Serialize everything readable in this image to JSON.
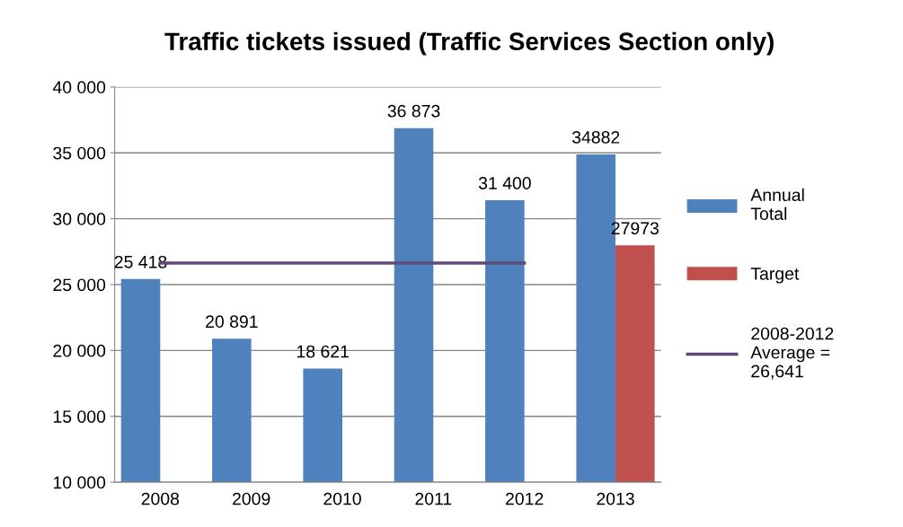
{
  "chart_data": {
    "type": "bar",
    "title": "Traffic tickets issued (Traffic Services Section only)",
    "categories": [
      "2008",
      "2009",
      "2010",
      "2011",
      "2012",
      "2013"
    ],
    "series": [
      {
        "name": "Annual Total",
        "color": "#4f81bd",
        "values": [
          25418,
          20891,
          18621,
          36873,
          31400,
          34882
        ],
        "value_labels": [
          "25 418",
          "20 891",
          "18 621",
          "36 873",
          "31 400",
          "34882"
        ]
      },
      {
        "name": "Target",
        "color": "#c0504d",
        "values": [
          null,
          null,
          null,
          null,
          null,
          27973
        ],
        "value_labels": [
          null,
          null,
          null,
          null,
          null,
          "27973"
        ]
      },
      {
        "name": "2008-2012 Average = 26,641",
        "type": "line",
        "color": "#604a7b",
        "values": [
          26641,
          26641,
          26641,
          26641,
          26641,
          null
        ]
      }
    ],
    "ylim": [
      10000,
      40000
    ],
    "yticks": [
      {
        "value": 10000,
        "label": "10 000"
      },
      {
        "value": 15000,
        "label": "15 000"
      },
      {
        "value": 20000,
        "label": "20 000"
      },
      {
        "value": 25000,
        "label": "25 000"
      },
      {
        "value": 30000,
        "label": "30 000"
      },
      {
        "value": 35000,
        "label": "35 000"
      },
      {
        "value": 40000,
        "label": "40 000"
      }
    ],
    "grid": "y",
    "legend": "right",
    "marker": "none",
    "line_style": "solid"
  }
}
